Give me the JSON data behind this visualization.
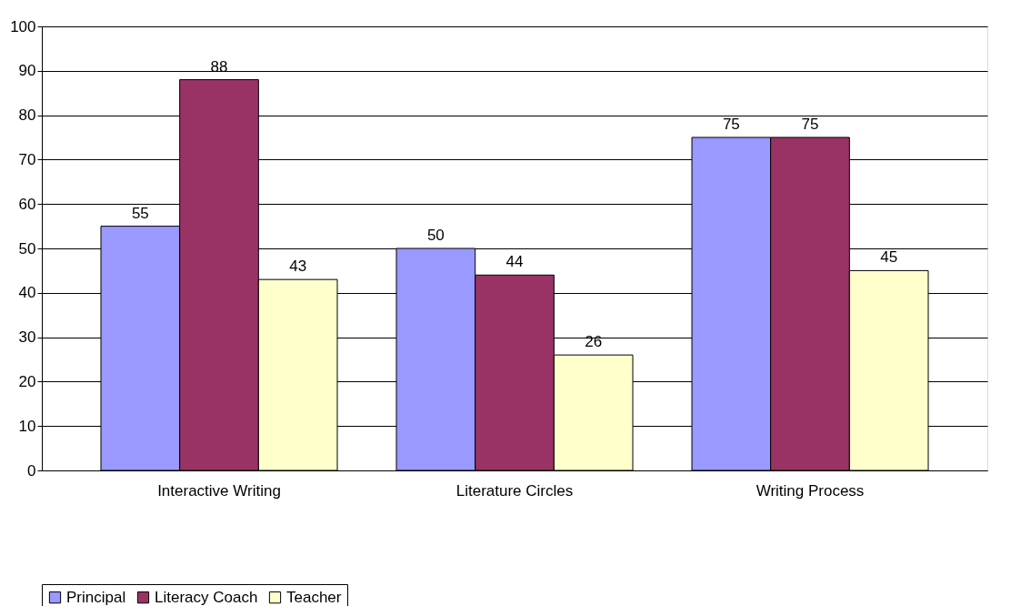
{
  "chart_data": {
    "type": "bar",
    "categories": [
      "Interactive Writing",
      "Literature Circles",
      "Writing Process"
    ],
    "series": [
      {
        "name": "Principal",
        "color": "#9999ff",
        "values": [
          55,
          50,
          75
        ]
      },
      {
        "name": "Literacy Coach",
        "color": "#993366",
        "values": [
          88,
          44,
          75
        ]
      },
      {
        "name": "Teacher",
        "color": "#ffffcc",
        "values": [
          43,
          26,
          45
        ]
      }
    ],
    "ylim": [
      0,
      100
    ],
    "yticks": [
      0,
      10,
      20,
      30,
      40,
      50,
      60,
      70,
      80,
      90,
      100
    ],
    "grid": "y",
    "legend": "bottom",
    "data_labels": true
  }
}
